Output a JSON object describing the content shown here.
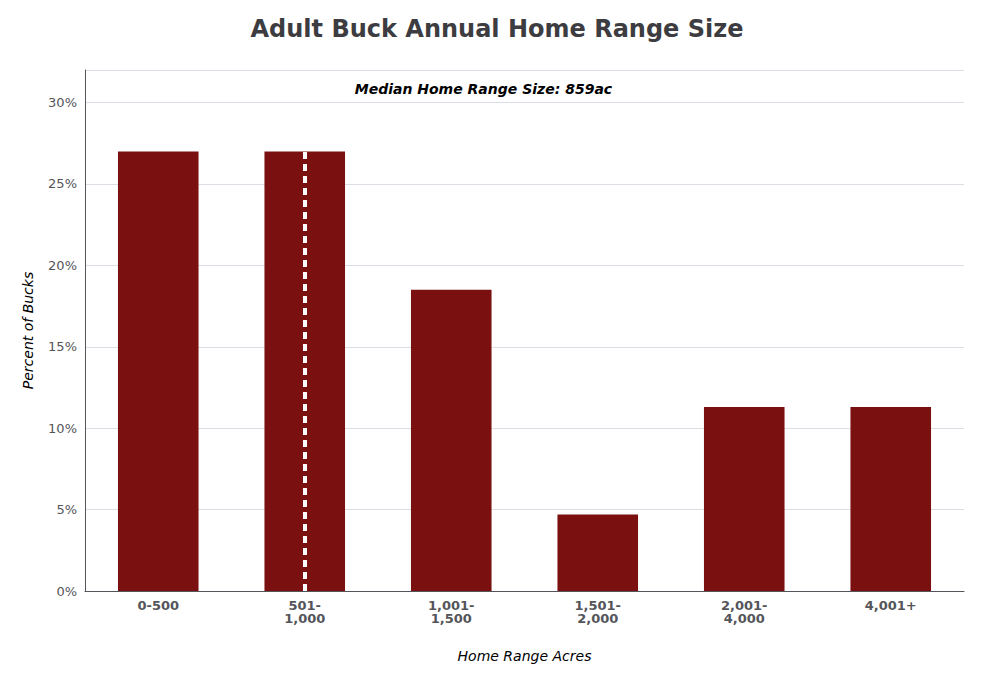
{
  "chart_data": {
    "type": "bar",
    "title": "Adult Buck Annual Home Range Size",
    "xlabel": "Home Range Acres",
    "ylabel": "Percent of Bucks",
    "categories": [
      "0-500",
      "501-\n1,000",
      "1,001-\n1,500",
      "1,501-\n2,000",
      "2,001-\n4,000",
      "4,001+"
    ],
    "values": [
      27,
      27,
      18.5,
      4.7,
      11.3,
      11.3
    ],
    "color": "#7B1010",
    "ylim": [
      0,
      32
    ],
    "yticks": [
      {
        "value": 0,
        "label": "0%"
      },
      {
        "value": 5,
        "label": "5%"
      },
      {
        "value": 10,
        "label": "10%"
      },
      {
        "value": 15,
        "label": "15%"
      },
      {
        "value": 20,
        "label": "20%"
      },
      {
        "value": 25,
        "label": "25%"
      },
      {
        "value": 30,
        "label": "30%"
      }
    ],
    "grid": true,
    "annotations": [
      {
        "text": "Median Home Range Size: 859ac",
        "category": "501-\n1,000",
        "color": "#FFFFFF",
        "line_style": "dashed"
      }
    ]
  }
}
